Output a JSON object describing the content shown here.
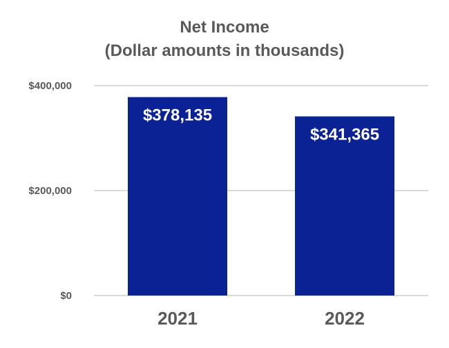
{
  "chart_data": {
    "type": "bar",
    "title": "Net Income",
    "subtitle": "(Dollar amounts in thousands)",
    "categories": [
      "2021",
      "2022"
    ],
    "values": [
      378135,
      341365
    ],
    "value_labels": [
      "$378,135",
      "$341,365"
    ],
    "y_ticks": [
      0,
      200000,
      400000
    ],
    "y_tick_labels": [
      "$0",
      "$200,000",
      "$400,000"
    ],
    "ylim": [
      0,
      400000
    ],
    "grid": true,
    "bar_color": "#0b2294",
    "grid_color": "#d9d9d9",
    "axis_text_color": "#595959",
    "label_color": "#ffffff"
  }
}
